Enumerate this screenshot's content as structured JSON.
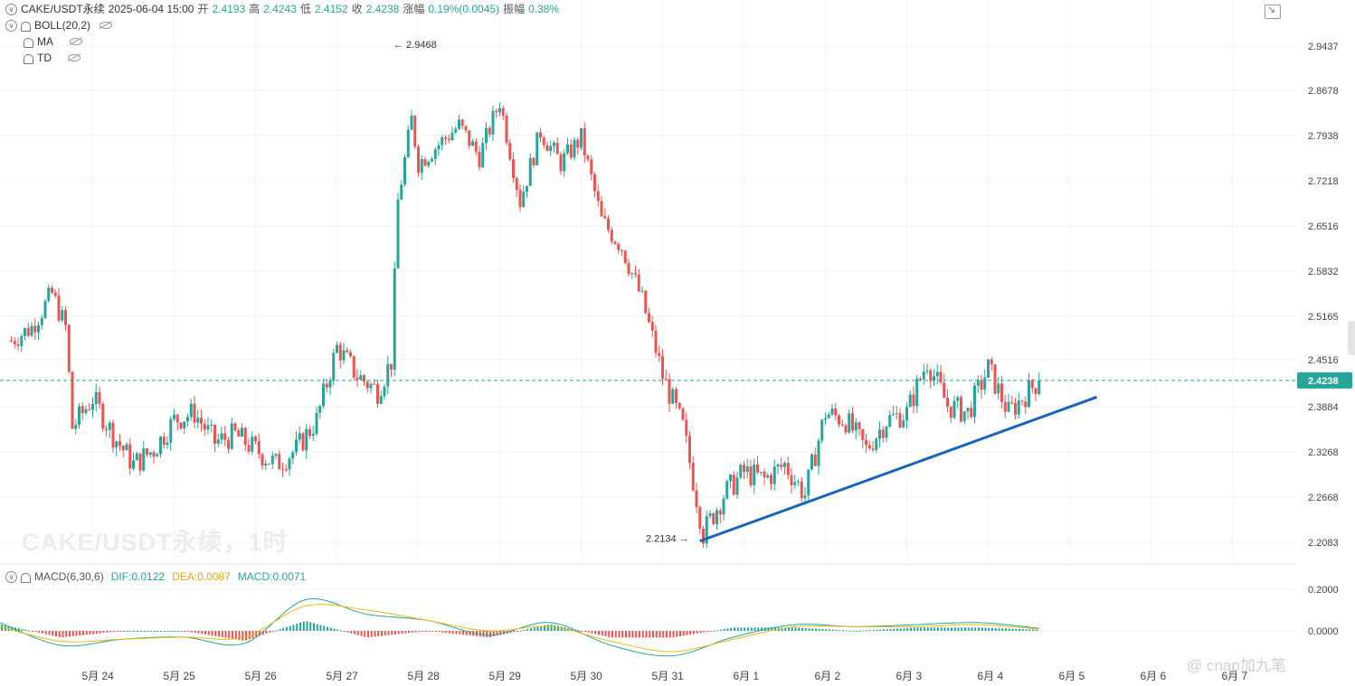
{
  "header": {
    "symbol": "CAKE/USDT永续",
    "datetime": "2025-06-04 15:00",
    "open_label": "开",
    "open": "2.4193",
    "high_label": "高",
    "high": "2.4243",
    "low_label": "低",
    "low": "2.4152",
    "close_label": "收",
    "close": "2.4238",
    "change_label": "涨幅",
    "change": "0.19%(0.0045)",
    "amplitude_label": "振幅",
    "amplitude": "0.38%"
  },
  "indicators": [
    "BOLL(20,2)",
    "MA",
    "TD"
  ],
  "watermark": "CAKE/USDT永续，1时",
  "corner_watermark": "@ cnap加九笔",
  "colors": {
    "up": "#26a69a",
    "down": "#ef5350",
    "trendline": "#1565c0",
    "dif": "#26a69a",
    "dea": "#f0b90b"
  },
  "macd": {
    "title": "MACD(6,30,6)",
    "dif_label": "DIF:0.0122",
    "dea_label": "DEA:0.0087",
    "macd_label": "MACD:0.0071"
  },
  "chart_data": {
    "type": "candlestick",
    "y_axis_ticks": [
      "2.9437",
      "2.8678",
      "2.7938",
      "2.7218",
      "2.6516",
      "2.5832",
      "2.5165",
      "2.4516",
      "2.3884",
      "2.3268",
      "2.2668",
      "2.2083"
    ],
    "x_axis_ticks": [
      "5月 24",
      "5月 25",
      "5月 26",
      "5月 27",
      "5月 28",
      "5月 29",
      "5月 30",
      "5月 31",
      "6月 1",
      "6月 2",
      "6月 3",
      "6月 4",
      "6月 5",
      "6月 6",
      "6月 7"
    ],
    "last_price": "2.4238",
    "high_marker": "2.9468",
    "low_marker": "2.2134",
    "close_path": [
      {
        "date": "5月 23 00:00",
        "close": 2.48
      },
      {
        "date": "5月 23 06:00",
        "close": 2.5
      },
      {
        "date": "5月 23 12:00",
        "close": 2.55
      },
      {
        "date": "5月 23 16:00",
        "close": 2.5
      },
      {
        "date": "5月 23 18:00",
        "close": 2.36
      },
      {
        "date": "5月 24 00:00",
        "close": 2.4
      },
      {
        "date": "5月 24 06:00",
        "close": 2.35
      },
      {
        "date": "5月 24 12:00",
        "close": 2.31
      },
      {
        "date": "5月 24 18:00",
        "close": 2.33
      },
      {
        "date": "5月 25 00:00",
        "close": 2.37
      },
      {
        "date": "5月 25 06:00",
        "close": 2.38
      },
      {
        "date": "5月 25 12:00",
        "close": 2.34
      },
      {
        "date": "5月 25 18:00",
        "close": 2.35
      },
      {
        "date": "5月 26 00:00",
        "close": 2.33
      },
      {
        "date": "5月 26 06:00",
        "close": 2.31
      },
      {
        "date": "5月 26 12:00",
        "close": 2.33
      },
      {
        "date": "5月 26 18:00",
        "close": 2.37
      },
      {
        "date": "5月 27 00:00",
        "close": 2.47
      },
      {
        "date": "5月 27 06:00",
        "close": 2.43
      },
      {
        "date": "5月 27 12:00",
        "close": 2.41
      },
      {
        "date": "5月 27 16:00",
        "close": 2.45
      },
      {
        "date": "5月 27 18:00",
        "close": 2.69
      },
      {
        "date": "5月 27 22:00",
        "close": 2.82
      },
      {
        "date": "5月 28 00:00",
        "close": 2.75
      },
      {
        "date": "5月 28 06:00",
        "close": 2.78
      },
      {
        "date": "5月 28 12:00",
        "close": 2.81
      },
      {
        "date": "5月 28 18:00",
        "close": 2.76
      },
      {
        "date": "5月 29 00:00",
        "close": 2.85
      },
      {
        "date": "5月 29 06:00",
        "close": 2.69
      },
      {
        "date": "5月 29 12:00",
        "close": 2.8
      },
      {
        "date": "5月 29 18:00",
        "close": 2.75
      },
      {
        "date": "5月 30 00:00",
        "close": 2.79
      },
      {
        "date": "5月 30 06:00",
        "close": 2.66
      },
      {
        "date": "5月 30 12:00",
        "close": 2.62
      },
      {
        "date": "5月 30 18:00",
        "close": 2.54
      },
      {
        "date": "5月 31 00:00",
        "close": 2.43
      },
      {
        "date": "5月 31 06:00",
        "close": 2.36
      },
      {
        "date": "5月 31 12:00",
        "close": 2.22
      },
      {
        "date": "5月 31 18:00",
        "close": 2.27
      },
      {
        "date": "6月 1 00:00",
        "close": 2.3
      },
      {
        "date": "6月 1 06:00",
        "close": 2.29
      },
      {
        "date": "6月 1 12:00",
        "close": 2.31
      },
      {
        "date": "6月 1 18:00",
        "close": 2.27
      },
      {
        "date": "6月 2 00:00",
        "close": 2.38
      },
      {
        "date": "6月 2 06:00",
        "close": 2.37
      },
      {
        "date": "6月 2 12:00",
        "close": 2.33
      },
      {
        "date": "6月 2 18:00",
        "close": 2.37
      },
      {
        "date": "6月 3 00:00",
        "close": 2.38
      },
      {
        "date": "6月 3 06:00",
        "close": 2.45
      },
      {
        "date": "6月 3 12:00",
        "close": 2.39
      },
      {
        "date": "6月 3 18:00",
        "close": 2.38
      },
      {
        "date": "6月 4 00:00",
        "close": 2.44
      },
      {
        "date": "6月 4 06:00",
        "close": 2.38
      },
      {
        "date": "6月 4 12:00",
        "close": 2.41
      },
      {
        "date": "6月 4 15:00",
        "close": 2.4238
      }
    ],
    "trendline": [
      {
        "date": "5月 31 11:00",
        "price": 2.2134
      },
      {
        "date": "6月 5 08:00",
        "price": 2.405
      }
    ],
    "macd_axis_ticks": [
      "0.2000",
      "0.0000"
    ],
    "macd_series": [
      {
        "name": "DIF",
        "values": [
          0.04,
          -0.07,
          -0.04,
          -0.03,
          -0.06,
          0.15,
          0.08,
          0.05,
          -0.02,
          0.04,
          -0.07,
          -0.12,
          -0.03,
          0.03,
          0.02,
          0.03,
          0.04,
          0.0122
        ]
      },
      {
        "name": "DEA",
        "values": [
          0.02,
          -0.05,
          -0.04,
          -0.03,
          -0.03,
          0.12,
          0.1,
          0.05,
          0.0,
          0.02,
          -0.05,
          -0.1,
          -0.04,
          0.02,
          0.02,
          0.02,
          0.03,
          0.0087
        ]
      }
    ]
  }
}
